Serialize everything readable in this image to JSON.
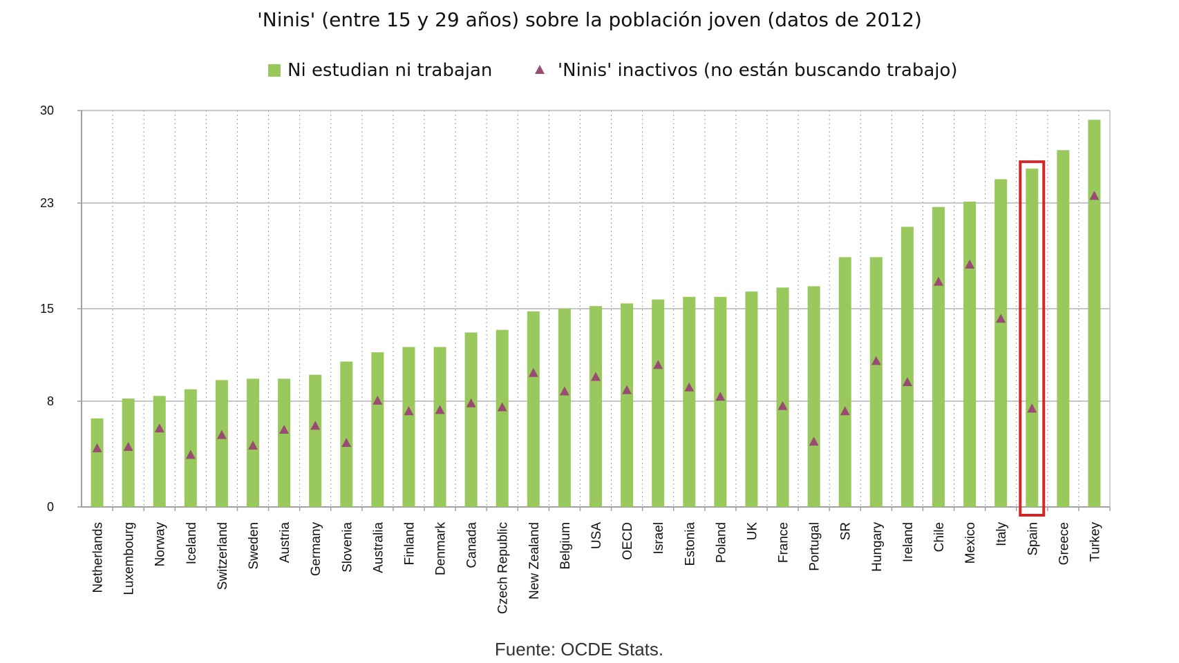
{
  "chart_data": {
    "type": "bar",
    "title": "'Ninis' (entre 15 y 29 años) sobre la población joven (datos de 2012)",
    "xlabel": "",
    "ylabel": "",
    "ylim": [
      0,
      30
    ],
    "yticks": [
      "0",
      "8",
      "15",
      "23",
      "30"
    ],
    "grid": "horizontal major lines, vertical dotted lines",
    "legend_position": "top-center",
    "categories": [
      "Netherlands",
      "Luxembourg",
      "Norway",
      "Iceland",
      "Switzerland",
      "Sweden",
      "Austria",
      "Germany",
      "Slovenia",
      "Australia",
      "Finland",
      "Denmark",
      "Canada",
      "Czech Republic",
      "New Zealand",
      "Belgium",
      "USA",
      "OECD",
      "Israel",
      "Estonia",
      "Poland",
      "UK",
      "France",
      "Portugal",
      "SR",
      "Hungary",
      "Ireland",
      "Chile",
      "Mexico",
      "Italy",
      "Spain",
      "Greece",
      "Turkey"
    ],
    "series": [
      {
        "name": "Ni estudian ni trabajan",
        "kind": "bar",
        "color": "#99c85c",
        "values": [
          6.7,
          8.2,
          8.4,
          8.9,
          9.6,
          9.7,
          9.7,
          10.0,
          11.0,
          11.7,
          12.1,
          12.1,
          13.2,
          13.4,
          14.8,
          15.0,
          15.2,
          15.4,
          15.7,
          15.9,
          15.9,
          16.3,
          16.6,
          16.7,
          18.9,
          18.9,
          21.2,
          22.7,
          23.1,
          24.8,
          25.6,
          27.0,
          29.3
        ]
      },
      {
        "name": "'Ninis' inactivos (no están buscando trabajo)",
        "kind": "marker-triangle",
        "color": "#9a4b73",
        "values": [
          4.4,
          4.5,
          5.9,
          3.9,
          5.4,
          4.6,
          5.8,
          6.1,
          4.8,
          8.0,
          7.2,
          7.3,
          7.8,
          7.5,
          10.1,
          8.7,
          9.8,
          8.8,
          10.7,
          9.0,
          8.3,
          null,
          7.6,
          4.9,
          7.2,
          11.0,
          9.4,
          17.0,
          18.3,
          14.2,
          7.4,
          null,
          23.5
        ]
      }
    ],
    "highlight": {
      "category": "Spain",
      "color": "#cc2a2a"
    }
  },
  "source": "Fuente: OCDE Stats."
}
